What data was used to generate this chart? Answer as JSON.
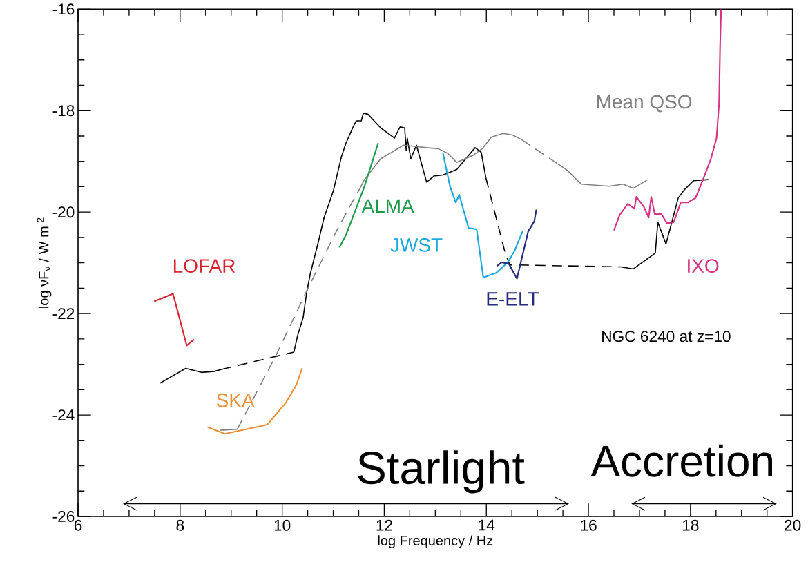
{
  "chart_data": {
    "type": "line",
    "xlabel": "log Frequency / Hz",
    "ylabel": "log νF$_{ν}$ / W m$^{-2}$",
    "xlim": [
      6,
      20
    ],
    "ylim": [
      -26,
      -16
    ],
    "xticks": [
      6,
      8,
      10,
      12,
      14,
      16,
      18,
      20
    ],
    "yticks": [
      -26,
      -24,
      -22,
      -20,
      -18,
      -16
    ],
    "marker": "none",
    "annotations": [
      "NGC 6240 at z=10",
      "Starlight",
      "Accretion"
    ],
    "series": [
      {
        "color": "#000000",
        "line_style": "solid",
        "x": [
          7.61,
          8.11,
          8.42,
          8.67,
          8.81
        ],
        "values": [
          -23.37,
          -23.08,
          -23.16,
          -23.14,
          -23.1
        ]
      },
      {
        "color": "#000000",
        "line_style": "dashed",
        "x": [
          8.81,
          10.23
        ],
        "values": [
          -23.1,
          -22.76
        ]
      },
      {
        "color": "#000000",
        "line_style": "solid",
        "x": [
          10.23,
          10.3,
          10.41,
          10.48,
          10.55,
          10.71,
          10.82,
          11.0,
          11.16,
          11.25,
          11.39,
          11.45,
          11.55,
          11.59,
          11.68,
          11.93,
          12.2,
          12.31,
          12.4,
          12.43,
          12.45,
          12.52,
          12.63,
          12.83,
          12.97,
          13.15,
          13.42,
          13.78,
          13.9,
          13.99
        ],
        "values": [
          -22.76,
          -22.44,
          -22.08,
          -21.58,
          -21.22,
          -20.58,
          -20.11,
          -19.59,
          -18.91,
          -18.64,
          -18.32,
          -18.2,
          -18.2,
          -18.05,
          -18.07,
          -18.34,
          -18.54,
          -18.32,
          -18.34,
          -18.79,
          -18.54,
          -18.95,
          -18.68,
          -19.41,
          -19.29,
          -19.27,
          -19.16,
          -18.73,
          -18.82,
          -19.32
        ]
      },
      {
        "color": "#000000",
        "line_style": "dashed",
        "x": [
          13.99,
          14.37,
          14.46,
          16.63
        ],
        "values": [
          -19.32,
          -20.81,
          -21.04,
          -21.08
        ]
      },
      {
        "color": "#000000",
        "line_style": "solid",
        "x": [
          16.63,
          16.88,
          17.31,
          17.36,
          17.52,
          17.76,
          17.88,
          18.06,
          18.35
        ],
        "values": [
          -21.08,
          -21.12,
          -20.81,
          -20.2,
          -20.63,
          -19.72,
          -19.56,
          -19.38,
          -19.36
        ]
      },
      {
        "color": "#808080",
        "line_style": "solid",
        "x": [
          8.79,
          9.12
        ],
        "values": [
          -24.3,
          -24.28
        ]
      },
      {
        "color": "#808080",
        "line_style": "dashed",
        "x": [
          9.12,
          9.89,
          10.53,
          11.07,
          11.39,
          11.52
        ],
        "values": [
          -24.28,
          -22.8,
          -21.45,
          -20.36,
          -19.77,
          -19.54
        ]
      },
      {
        "name": "Mean QSO",
        "color": "#808080",
        "line_style": "solid",
        "x": [
          11.52,
          11.61,
          11.93,
          12.38,
          12.83,
          13.06,
          13.24,
          13.42,
          13.74,
          13.92,
          14.1,
          14.33,
          14.51,
          14.69
        ],
        "values": [
          -19.54,
          -19.36,
          -18.95,
          -18.68,
          -18.73,
          -18.75,
          -18.84,
          -19.02,
          -18.88,
          -18.75,
          -18.52,
          -18.45,
          -18.48,
          -18.57
        ]
      },
      {
        "color": "#808080",
        "line_style": "dashed",
        "x": [
          14.69,
          15.4
        ],
        "values": [
          -18.57,
          -19.05
        ]
      },
      {
        "color": "#808080",
        "line_style": "solid",
        "x": [
          15.4,
          15.59,
          15.86,
          16.41,
          16.68,
          16.88,
          17.15
        ],
        "values": [
          -19.05,
          -19.18,
          -19.45,
          -19.49,
          -19.45,
          -19.53,
          -19.37
        ]
      },
      {
        "name": "LOFAR",
        "color": "#d62631",
        "line_style": "solid",
        "x": [
          7.49,
          7.86,
          8.13,
          8.27
        ],
        "values": [
          -21.76,
          -21.61,
          -22.63,
          -22.51
        ]
      },
      {
        "name": "SKA",
        "color": "#e8913a",
        "line_style": "solid",
        "x": [
          8.54,
          8.88,
          9.71,
          10.07,
          10.28,
          10.39
        ],
        "values": [
          -24.24,
          -24.37,
          -24.19,
          -23.76,
          -23.4,
          -23.08
        ]
      },
      {
        "name": "ALMA",
        "color": "#1a9a4a",
        "line_style": "solid",
        "x": [
          11.12,
          11.25,
          11.61,
          11.88
        ],
        "values": [
          -20.7,
          -20.45,
          -19.5,
          -18.64
        ]
      },
      {
        "name": "JWST",
        "color": "#1ba8dc",
        "line_style": "solid",
        "x": [
          13.15,
          13.29,
          13.4,
          13.47,
          13.65,
          13.81,
          13.94,
          14.19,
          14.42,
          14.55,
          14.71
        ],
        "values": [
          -18.84,
          -19.5,
          -19.81,
          -19.66,
          -20.31,
          -20.34,
          -21.29,
          -21.2,
          -20.99,
          -20.77,
          -20.38
        ]
      },
      {
        "name": "E-ELT",
        "color": "#252b7a",
        "line_style": "solid",
        "x": [
          14.21,
          14.3,
          14.44,
          14.6,
          14.82,
          14.94,
          14.98
        ],
        "values": [
          -21.06,
          -20.99,
          -21.02,
          -21.31,
          -20.38,
          -20.18,
          -19.95
        ]
      },
      {
        "name": "IXO",
        "color": "#d63384",
        "line_style": "solid",
        "x": [
          16.5,
          16.61,
          16.77,
          16.9,
          16.94,
          17.09,
          17.18,
          17.23,
          17.3,
          17.43,
          17.54,
          17.67,
          17.81,
          17.95,
          18.1,
          18.26,
          18.4,
          18.51,
          18.56,
          18.58,
          18.6
        ],
        "values": [
          -20.36,
          -20.06,
          -19.84,
          -19.93,
          -19.7,
          -19.9,
          -20.11,
          -19.7,
          -20.04,
          -20.04,
          -20.22,
          -20.2,
          -19.81,
          -19.81,
          -19.72,
          -19.32,
          -18.95,
          -18.54,
          -17.86,
          -16.73,
          -16.0
        ]
      }
    ]
  }
}
